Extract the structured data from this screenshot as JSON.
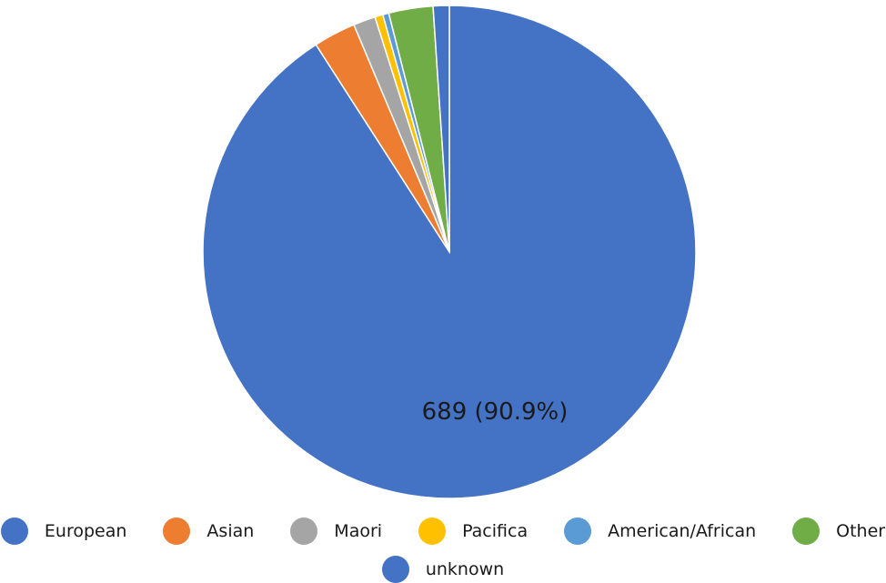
{
  "chart_data": {
    "type": "pie",
    "title": "",
    "categories": [
      "European",
      "Asian",
      "Maori",
      "Pacifica",
      "American/African",
      "Other",
      "unknown"
    ],
    "values": [
      689,
      21,
      11,
      4,
      3,
      22,
      8
    ],
    "colors": [
      "#4472C4",
      "#ED7D31",
      "#A5A5A5",
      "#FFC000",
      "#5B9BD5",
      "#70AD47",
      "#4472C4"
    ],
    "data_labels": [
      "689 (90.9%)",
      "",
      "",
      "",
      "",
      "",
      ""
    ],
    "legend_position": "bottom"
  }
}
